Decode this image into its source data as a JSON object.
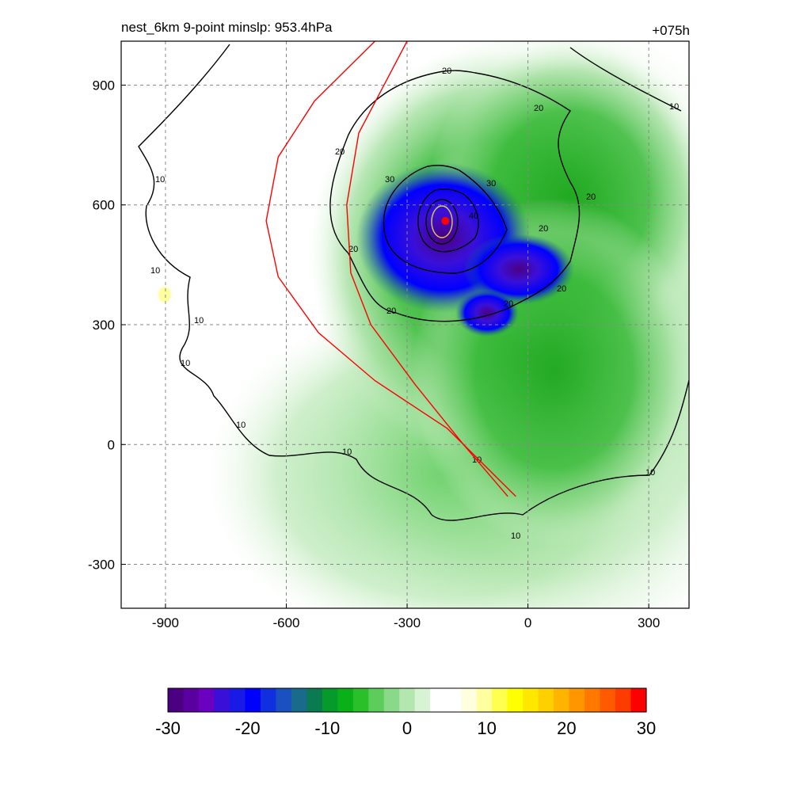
{
  "chart_data": {
    "type": "heatmap",
    "title_left": "nest_6km  9-point minslp: 953.4hPa",
    "title_right": "+075h",
    "xlabel": "",
    "ylabel": "",
    "xlim": [
      -1010,
      400
    ],
    "ylim": [
      -410,
      1010
    ],
    "x_ticks": [
      -900,
      -600,
      -300,
      0,
      300
    ],
    "y_ticks": [
      900,
      600,
      300,
      0,
      -300
    ],
    "grid": true,
    "grid_style": "dashed",
    "colorbar": {
      "min": -30,
      "max": 30,
      "ticks": [
        -30,
        -20,
        -10,
        0,
        10,
        20,
        30
      ],
      "colors": [
        "#4b0082",
        "#5a00a0",
        "#6a00c0",
        "#3a10d8",
        "#1a1ae6",
        "#0000ff",
        "#1030e0",
        "#1a50c0",
        "#1a6a8c",
        "#0a7a50",
        "#069a2a",
        "#09b018",
        "#2ac02a",
        "#5ccc5a",
        "#8ad88a",
        "#b4e6b0",
        "#d8f2d4",
        "#ffffff",
        "#ffffff",
        "#ffffe0",
        "#ffffa0",
        "#ffff50",
        "#ffff00",
        "#ffe800",
        "#ffd000",
        "#ffb400",
        "#ff9600",
        "#ff7800",
        "#ff5a00",
        "#ff3c00",
        "#ff0000"
      ]
    },
    "contour_labels": [
      "10",
      "20",
      "30",
      "40"
    ],
    "storm_center": {
      "x": -205,
      "y": 560
    },
    "tracks": [
      {
        "color": "#ff0000",
        "points": [
          [
            -50,
            -130
          ],
          [
            -160,
            0
          ],
          [
            -280,
            150
          ],
          [
            -390,
            300
          ],
          [
            -440,
            430
          ],
          [
            -450,
            600
          ],
          [
            -420,
            780
          ],
          [
            -300,
            1010
          ]
        ]
      },
      {
        "color": "#ff0000",
        "points": [
          [
            -30,
            -130
          ],
          [
            -200,
            40
          ],
          [
            -380,
            160
          ],
          [
            -520,
            280
          ],
          [
            -620,
            420
          ],
          [
            -650,
            560
          ],
          [
            -620,
            720
          ],
          [
            -530,
            860
          ],
          [
            -380,
            1010
          ]
        ]
      }
    ]
  }
}
